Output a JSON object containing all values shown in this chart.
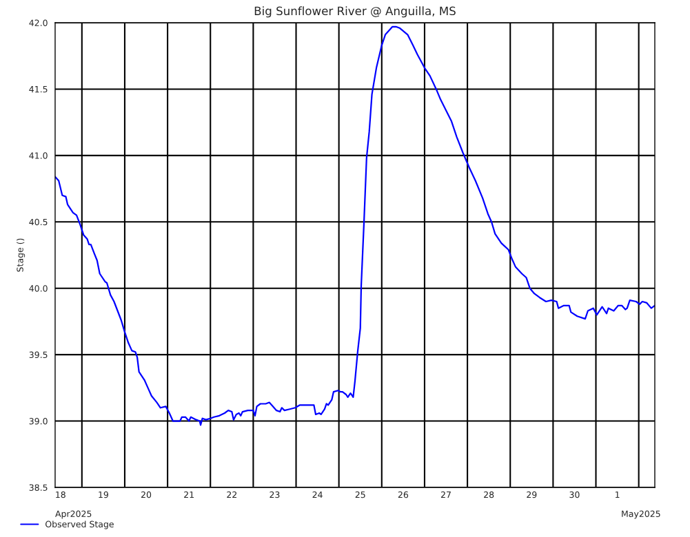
{
  "chart_data": {
    "type": "line",
    "title": "Big Sunflower River @ Anguilla, MS",
    "ylabel": "Stage ()",
    "legend": "bottom left",
    "grid": true,
    "marker": "none",
    "line_style": "solid",
    "xlim": [
      "2025-04-18T09:00",
      "2025-05-02T09:00"
    ],
    "xticks": [
      {
        "value": "2025-04-18T12:00",
        "label": "18"
      },
      {
        "value": "2025-04-19T00:00",
        "label": null
      },
      {
        "value": "2025-04-19T12:00",
        "label": "19"
      },
      {
        "value": "2025-04-20T00:00",
        "label": null
      },
      {
        "value": "2025-04-20T12:00",
        "label": "20"
      },
      {
        "value": "2025-04-21T00:00",
        "label": null
      },
      {
        "value": "2025-04-21T12:00",
        "label": "21"
      },
      {
        "value": "2025-04-22T00:00",
        "label": null
      },
      {
        "value": "2025-04-22T12:00",
        "label": "22"
      },
      {
        "value": "2025-04-23T00:00",
        "label": null
      },
      {
        "value": "2025-04-23T12:00",
        "label": "23"
      },
      {
        "value": "2025-04-24T00:00",
        "label": null
      },
      {
        "value": "2025-04-24T12:00",
        "label": "24"
      },
      {
        "value": "2025-04-25T00:00",
        "label": null
      },
      {
        "value": "2025-04-25T12:00",
        "label": "25"
      },
      {
        "value": "2025-04-26T00:00",
        "label": null
      },
      {
        "value": "2025-04-26T12:00",
        "label": "26"
      },
      {
        "value": "2025-04-27T00:00",
        "label": null
      },
      {
        "value": "2025-04-27T12:00",
        "label": "27"
      },
      {
        "value": "2025-04-28T00:00",
        "label": null
      },
      {
        "value": "2025-04-28T12:00",
        "label": "28"
      },
      {
        "value": "2025-04-29T00:00",
        "label": null
      },
      {
        "value": "2025-04-29T12:00",
        "label": "29"
      },
      {
        "value": "2025-04-30T00:00",
        "label": null
      },
      {
        "value": "2025-04-30T12:00",
        "label": "30"
      },
      {
        "value": "2025-05-01T00:00",
        "label": null
      },
      {
        "value": "2025-05-01T12:00",
        "label": "1"
      },
      {
        "value": "2025-05-02T00:00",
        "label": null
      }
    ],
    "ylim": [
      38.5,
      42.0
    ],
    "yticks": [
      {
        "value": 38.5,
        "label": "38.5"
      },
      {
        "value": 39.0,
        "label": "39.0"
      },
      {
        "value": 39.5,
        "label": "39.5"
      },
      {
        "value": 40.0,
        "label": "40.0"
      },
      {
        "value": 40.5,
        "label": "40.5"
      },
      {
        "value": 41.0,
        "label": "41.0"
      },
      {
        "value": 41.5,
        "label": "41.5"
      },
      {
        "value": 42.0,
        "label": "42.0"
      }
    ],
    "annotations": [
      "Apr2025",
      "May2025"
    ],
    "series": [
      {
        "name": "Observed Stage",
        "color": "#0000ff",
        "x": [
          "2025-04-18T09:00",
          "2025-04-18T11:00",
          "2025-04-18T13:00",
          "2025-04-18T15:00",
          "2025-04-18T16:00",
          "2025-04-18T19:00",
          "2025-04-18T21:00",
          "2025-04-18T23:00",
          "2025-04-19T01:00",
          "2025-04-19T03:00",
          "2025-04-19T04:00",
          "2025-04-19T05:00",
          "2025-04-19T07:00",
          "2025-04-19T08:30",
          "2025-04-19T10:00",
          "2025-04-19T13:00",
          "2025-04-19T14:00",
          "2025-04-19T16:00",
          "2025-04-19T18:00",
          "2025-04-19T20:00",
          "2025-04-19T22:00",
          "2025-04-20T00:00",
          "2025-04-20T02:00",
          "2025-04-20T04:00",
          "2025-04-20T06:00",
          "2025-04-20T07:00",
          "2025-04-20T08:00",
          "2025-04-20T11:00",
          "2025-04-20T13:00",
          "2025-04-20T15:00",
          "2025-04-20T18:00",
          "2025-04-20T20:00",
          "2025-04-20T23:00",
          "2025-04-21T01:00",
          "2025-04-21T03:00",
          "2025-04-21T05:00",
          "2025-04-21T07:00",
          "2025-04-21T08:00",
          "2025-04-21T10:00",
          "2025-04-21T12:00",
          "2025-04-21T13:00",
          "2025-04-21T16:00",
          "2025-04-21T18:00",
          "2025-04-21T18:30",
          "2025-04-21T19:30",
          "2025-04-21T21:30",
          "2025-04-22T00:00",
          "2025-04-22T02:00",
          "2025-04-22T05:00",
          "2025-04-22T08:00",
          "2025-04-22T10:00",
          "2025-04-22T12:00",
          "2025-04-22T13:00",
          "2025-04-22T14:30",
          "2025-04-22T16:00",
          "2025-04-22T17:00",
          "2025-04-22T18:00",
          "2025-04-22T21:00",
          "2025-04-23T00:00",
          "2025-04-23T01:00",
          "2025-04-23T02:00",
          "2025-04-23T04:00",
          "2025-04-23T07:00",
          "2025-04-23T09:00",
          "2025-04-23T11:00",
          "2025-04-23T13:00",
          "2025-04-23T15:00",
          "2025-04-23T16:00",
          "2025-04-23T17:30",
          "2025-04-23T20:30",
          "2025-04-23T23:30",
          "2025-04-24T02:00",
          "2025-04-24T07:00",
          "2025-04-24T10:00",
          "2025-04-24T11:00",
          "2025-04-24T13:00",
          "2025-04-24T14:00",
          "2025-04-24T16:00",
          "2025-04-24T17:00",
          "2025-04-24T18:00",
          "2025-04-24T20:00",
          "2025-04-24T21:00",
          "2025-04-24T23:30",
          "2025-04-25T01:00",
          "2025-04-25T02:00",
          "2025-04-25T04:00",
          "2025-04-25T05:00",
          "2025-04-25T06:30",
          "2025-04-25T08:00",
          "2025-04-25T09:00",
          "2025-04-25T10:30",
          "2025-04-25T12:00",
          "2025-04-25T12:30",
          "2025-04-25T14:00",
          "2025-04-25T15:30",
          "2025-04-25T17:00",
          "2025-04-25T18:30",
          "2025-04-25T21:00",
          "2025-04-26T00:00",
          "2025-04-26T02:00",
          "2025-04-26T06:00",
          "2025-04-26T08:00",
          "2025-04-26T10:00",
          "2025-04-26T14:30",
          "2025-04-26T17:30",
          "2025-04-26T20:00",
          "2025-04-27T00:00",
          "2025-04-27T03:00",
          "2025-04-27T06:30",
          "2025-04-27T09:00",
          "2025-04-27T12:00",
          "2025-04-27T15:00",
          "2025-04-27T18:00",
          "2025-04-27T21:30",
          "2025-04-28T01:00",
          "2025-04-28T04:30",
          "2025-04-28T08:30",
          "2025-04-28T11:30",
          "2025-04-28T13:30",
          "2025-04-28T15:30",
          "2025-04-28T19:00",
          "2025-04-28T23:00",
          "2025-04-29T01:00",
          "2025-04-29T03:00",
          "2025-04-29T06:30",
          "2025-04-29T09:00",
          "2025-04-29T11:00",
          "2025-04-29T13:30",
          "2025-04-29T16:30",
          "2025-04-29T20:00",
          "2025-04-29T23:00",
          "2025-04-30T02:00",
          "2025-04-30T03:00",
          "2025-04-30T06:00",
          "2025-04-30T09:00",
          "2025-04-30T10:00",
          "2025-04-30T13:30",
          "2025-04-30T18:00",
          "2025-04-30T19:30",
          "2025-04-30T22:30",
          "2025-05-01T00:30",
          "2025-05-01T03:30",
          "2025-05-01T06:00",
          "2025-05-01T07:00",
          "2025-05-01T10:00",
          "2025-05-01T12:30",
          "2025-05-01T14:30",
          "2025-05-01T16:30",
          "2025-05-01T17:30",
          "2025-05-01T19:00",
          "2025-05-01T22:30",
          "2025-05-02T00:30",
          "2025-05-02T02:00",
          "2025-05-02T04:30",
          "2025-05-02T07:00",
          "2025-05-02T09:00"
        ],
        "values": [
          40.84,
          40.81,
          40.7,
          40.69,
          40.63,
          40.57,
          40.55,
          40.48,
          40.4,
          40.37,
          40.33,
          40.33,
          40.26,
          40.21,
          40.11,
          40.05,
          40.04,
          39.95,
          39.9,
          39.83,
          39.76,
          39.67,
          39.59,
          39.53,
          39.52,
          39.48,
          39.37,
          39.31,
          39.25,
          39.19,
          39.14,
          39.1,
          39.11,
          39.06,
          39.0,
          39.0,
          39.0,
          39.03,
          39.03,
          39.0,
          39.03,
          39.01,
          39.0,
          38.97,
          39.02,
          39.01,
          39.02,
          39.03,
          39.04,
          39.06,
          39.08,
          39.07,
          39.01,
          39.05,
          39.06,
          39.04,
          39.07,
          39.08,
          39.08,
          39.04,
          39.11,
          39.13,
          39.13,
          39.14,
          39.11,
          39.08,
          39.07,
          39.1,
          39.08,
          39.09,
          39.1,
          39.12,
          39.12,
          39.12,
          39.05,
          39.06,
          39.05,
          39.09,
          39.13,
          39.12,
          39.16,
          39.22,
          39.23,
          39.22,
          39.22,
          39.2,
          39.18,
          39.21,
          39.18,
          39.3,
          39.52,
          39.7,
          40.02,
          40.48,
          40.98,
          41.18,
          41.46,
          41.66,
          41.83,
          41.91,
          41.97,
          41.97,
          41.96,
          41.91,
          41.83,
          41.76,
          41.66,
          41.6,
          41.5,
          41.42,
          41.34,
          41.26,
          41.14,
          41.02,
          40.91,
          40.81,
          40.68,
          40.56,
          40.5,
          40.41,
          40.34,
          40.29,
          40.22,
          40.16,
          40.11,
          40.08,
          40.0,
          39.96,
          39.93,
          39.9,
          39.91,
          39.9,
          39.85,
          39.87,
          39.87,
          39.82,
          39.79,
          39.77,
          39.83,
          39.85,
          39.8,
          39.86,
          39.81,
          39.85,
          39.83,
          39.87,
          39.87,
          39.84,
          39.85,
          39.91,
          39.9,
          39.88,
          39.9,
          39.89,
          39.85,
          39.87
        ]
      }
    ]
  }
}
